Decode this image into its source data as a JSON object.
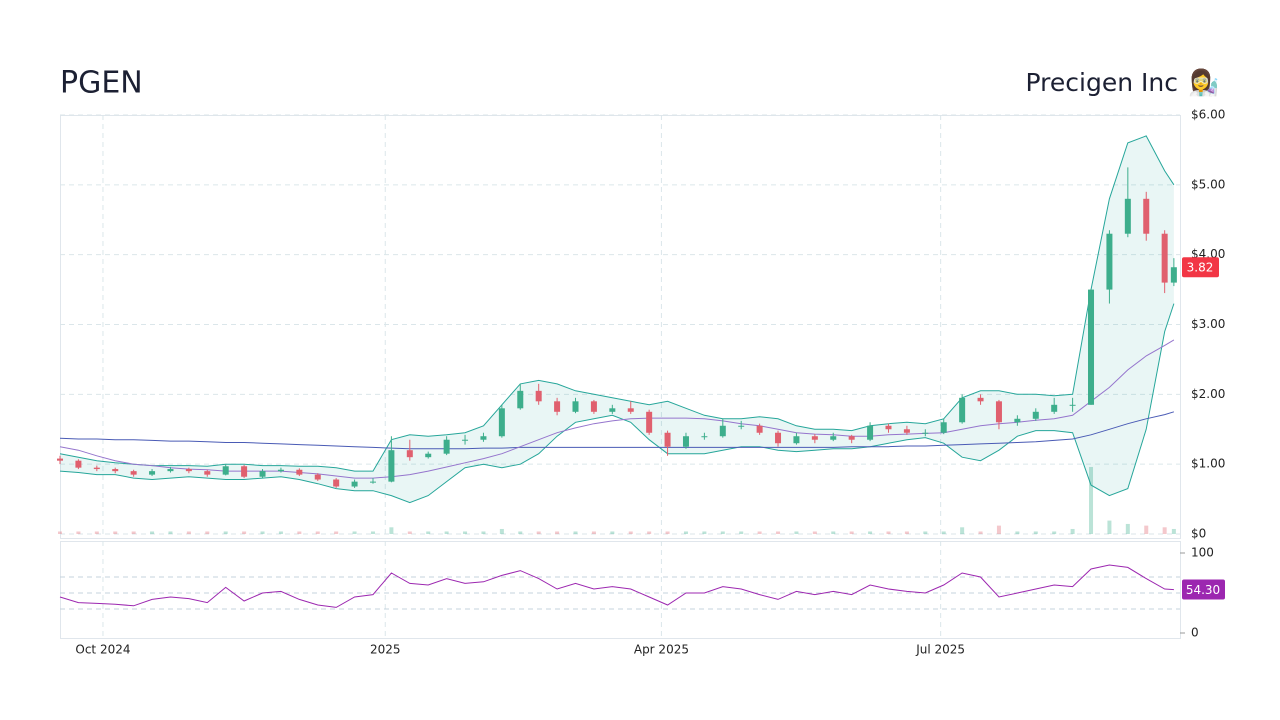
{
  "chart_data": {
    "type": "candlestick",
    "title": "PGEN",
    "subtitle": "Precigen Inc",
    "icon": "👩‍🔬",
    "x": [
      0,
      6,
      12,
      18,
      24,
      30,
      36,
      42,
      48,
      54,
      60,
      66,
      72,
      78,
      84,
      90,
      96,
      102,
      108,
      114,
      120,
      126,
      132,
      138,
      144,
      150,
      156,
      162,
      168,
      174,
      180,
      186,
      192,
      198,
      204,
      210,
      216,
      222,
      228,
      234,
      240,
      246,
      252,
      258,
      264,
      270,
      276,
      282,
      288,
      294,
      300,
      306,
      312,
      318,
      324,
      330,
      336,
      342,
      348,
      354,
      360,
      363
    ],
    "xlim": [
      0,
      365
    ],
    "xticks": [
      {
        "value": 14,
        "label": "Oct 2024"
      },
      {
        "value": 106,
        "label": "2025"
      },
      {
        "value": 196,
        "label": "Apr 2025"
      },
      {
        "value": 287,
        "label": "Jul 2025"
      }
    ],
    "ylim": [
      0,
      6
    ],
    "yticks": [
      {
        "value": 0,
        "label": "$0"
      },
      {
        "value": 1,
        "label": "$1.00"
      },
      {
        "value": 2,
        "label": "$2.00"
      },
      {
        "value": 3,
        "label": "$3.00"
      },
      {
        "value": 4,
        "label": "$4.00"
      },
      {
        "value": 5,
        "label": "$5.00"
      },
      {
        "value": 6,
        "label": "$6.00"
      }
    ],
    "grid": true,
    "up_color": "#3dae8c",
    "down_color": "#e0606e",
    "open": [
      1.08,
      1.05,
      0.95,
      0.93,
      0.9,
      0.85,
      0.9,
      0.93,
      0.9,
      0.85,
      0.97,
      0.82,
      0.9,
      0.92,
      0.85,
      0.78,
      0.68,
      0.75,
      0.75,
      1.2,
      1.1,
      1.15,
      1.35,
      1.35,
      1.4,
      1.8,
      2.05,
      1.9,
      1.75,
      1.9,
      1.75,
      1.8,
      1.75,
      1.45,
      1.25,
      1.4,
      1.4,
      1.55,
      1.55,
      1.45,
      1.3,
      1.4,
      1.35,
      1.4,
      1.35,
      1.55,
      1.5,
      1.45,
      1.45,
      1.6,
      1.95,
      1.9,
      1.6,
      1.65,
      1.75,
      1.85,
      1.85,
      3.5,
      4.3,
      4.8,
      4.3,
      3.6
    ],
    "high": [
      1.12,
      1.07,
      0.98,
      0.95,
      0.92,
      0.93,
      0.96,
      0.95,
      0.92,
      1.0,
      0.99,
      0.93,
      0.95,
      0.94,
      0.87,
      0.8,
      0.78,
      0.8,
      1.4,
      1.35,
      1.18,
      1.4,
      1.42,
      1.45,
      1.85,
      2.15,
      2.15,
      1.95,
      1.95,
      1.92,
      1.85,
      1.9,
      1.78,
      1.48,
      1.45,
      1.45,
      1.65,
      1.62,
      1.58,
      1.48,
      1.45,
      1.43,
      1.45,
      1.42,
      1.6,
      1.58,
      1.55,
      1.5,
      1.65,
      2.0,
      2.0,
      1.92,
      1.7,
      1.8,
      1.95,
      1.95,
      3.5,
      4.35,
      5.25,
      4.9,
      4.35,
      3.95
    ],
    "low": [
      1.0,
      0.93,
      0.9,
      0.87,
      0.82,
      0.83,
      0.88,
      0.87,
      0.82,
      0.84,
      0.8,
      0.8,
      0.88,
      0.83,
      0.76,
      0.66,
      0.66,
      0.72,
      0.74,
      1.05,
      1.08,
      1.13,
      1.28,
      1.32,
      1.38,
      1.78,
      1.85,
      1.7,
      1.73,
      1.72,
      1.72,
      1.72,
      1.42,
      1.12,
      1.22,
      1.35,
      1.38,
      1.5,
      1.42,
      1.25,
      1.28,
      1.3,
      1.33,
      1.3,
      1.33,
      1.45,
      1.42,
      1.4,
      1.43,
      1.58,
      1.85,
      1.5,
      1.55,
      1.62,
      1.72,
      1.75,
      1.85,
      3.3,
      4.25,
      4.2,
      3.45,
      3.55
    ],
    "close": [
      1.05,
      0.95,
      0.93,
      0.9,
      0.85,
      0.9,
      0.93,
      0.9,
      0.85,
      0.97,
      0.82,
      0.9,
      0.92,
      0.85,
      0.78,
      0.68,
      0.75,
      0.75,
      1.2,
      1.1,
      1.15,
      1.35,
      1.35,
      1.4,
      1.8,
      2.05,
      1.9,
      1.75,
      1.9,
      1.75,
      1.8,
      1.75,
      1.45,
      1.25,
      1.4,
      1.4,
      1.55,
      1.55,
      1.45,
      1.3,
      1.4,
      1.35,
      1.4,
      1.35,
      1.55,
      1.5,
      1.45,
      1.45,
      1.6,
      1.95,
      1.9,
      1.6,
      1.65,
      1.75,
      1.85,
      1.85,
      3.5,
      4.3,
      4.8,
      4.3,
      3.6,
      3.82
    ],
    "band_color": "#26a69a",
    "bollinger_upper": [
      1.15,
      1.1,
      1.05,
      1.02,
      1.0,
      0.98,
      0.98,
      0.98,
      0.97,
      1.0,
      1.0,
      0.98,
      0.98,
      0.97,
      0.97,
      0.95,
      0.9,
      0.9,
      1.35,
      1.42,
      1.4,
      1.42,
      1.45,
      1.55,
      1.85,
      2.15,
      2.2,
      2.15,
      2.05,
      2.0,
      1.95,
      1.9,
      1.85,
      1.9,
      1.8,
      1.7,
      1.65,
      1.65,
      1.68,
      1.65,
      1.55,
      1.5,
      1.5,
      1.48,
      1.55,
      1.58,
      1.6,
      1.58,
      1.65,
      1.95,
      2.05,
      2.05,
      2.0,
      2.0,
      1.98,
      2.0,
      3.5,
      4.8,
      5.6,
      5.7,
      5.2,
      5.0
    ],
    "bollinger_lower": [
      0.9,
      0.88,
      0.85,
      0.85,
      0.8,
      0.78,
      0.8,
      0.82,
      0.8,
      0.78,
      0.78,
      0.8,
      0.82,
      0.78,
      0.72,
      0.65,
      0.62,
      0.62,
      0.55,
      0.45,
      0.55,
      0.75,
      0.95,
      1.0,
      0.95,
      1.0,
      1.15,
      1.4,
      1.6,
      1.65,
      1.7,
      1.6,
      1.35,
      1.15,
      1.15,
      1.15,
      1.2,
      1.25,
      1.25,
      1.2,
      1.18,
      1.2,
      1.22,
      1.22,
      1.25,
      1.3,
      1.35,
      1.38,
      1.3,
      1.1,
      1.05,
      1.2,
      1.4,
      1.48,
      1.48,
      1.45,
      0.7,
      0.55,
      0.65,
      1.5,
      2.9,
      3.3
    ],
    "ma_fast_color": "#9575cd",
    "ma_fast": [
      1.25,
      1.2,
      1.12,
      1.05,
      1.0,
      0.98,
      0.95,
      0.93,
      0.92,
      0.9,
      0.9,
      0.9,
      0.9,
      0.88,
      0.86,
      0.83,
      0.8,
      0.8,
      0.82,
      0.85,
      0.9,
      0.96,
      1.02,
      1.08,
      1.15,
      1.25,
      1.35,
      1.45,
      1.52,
      1.58,
      1.62,
      1.65,
      1.66,
      1.66,
      1.66,
      1.65,
      1.62,
      1.58,
      1.55,
      1.5,
      1.45,
      1.43,
      1.42,
      1.4,
      1.4,
      1.42,
      1.43,
      1.44,
      1.45,
      1.5,
      1.55,
      1.58,
      1.6,
      1.63,
      1.65,
      1.7,
      1.9,
      2.1,
      2.35,
      2.55,
      2.7,
      2.78
    ],
    "ma_slow_color": "#4a5bb5",
    "ma_slow": [
      1.37,
      1.36,
      1.36,
      1.35,
      1.35,
      1.34,
      1.33,
      1.33,
      1.32,
      1.31,
      1.31,
      1.3,
      1.29,
      1.28,
      1.27,
      1.26,
      1.25,
      1.24,
      1.23,
      1.22,
      1.22,
      1.22,
      1.22,
      1.23,
      1.23,
      1.24,
      1.24,
      1.24,
      1.24,
      1.24,
      1.24,
      1.24,
      1.24,
      1.24,
      1.24,
      1.24,
      1.24,
      1.24,
      1.24,
      1.24,
      1.24,
      1.24,
      1.24,
      1.25,
      1.25,
      1.25,
      1.26,
      1.26,
      1.27,
      1.28,
      1.29,
      1.3,
      1.31,
      1.32,
      1.34,
      1.36,
      1.42,
      1.5,
      1.58,
      1.65,
      1.71,
      1.75
    ],
    "volume_lim": [
      0,
      250
    ],
    "volume": [
      1.5,
      1.5,
      1.5,
      1.5,
      1.5,
      1.5,
      1.5,
      1.5,
      1.5,
      1.5,
      1.5,
      1.5,
      1.5,
      1.5,
      1.5,
      1.5,
      1.5,
      1.5,
      4,
      1.5,
      1.5,
      1.5,
      1.5,
      1.5,
      3,
      1.5,
      1.5,
      1.5,
      1.5,
      1.5,
      1.5,
      1.5,
      1.5,
      1.5,
      1.5,
      1.5,
      1.5,
      1.5,
      1.5,
      1.5,
      1.5,
      1.5,
      1.5,
      1.5,
      1.5,
      1.5,
      1.5,
      1.5,
      1.5,
      4,
      1.5,
      5,
      1.5,
      1.5,
      1.5,
      3,
      40,
      8,
      6,
      5,
      4,
      3
    ],
    "last_color": "#f23645",
    "rsi": {
      "color": "#9c27b0",
      "ylim": [
        0,
        100
      ],
      "yticks": [
        0,
        100
      ],
      "levels": [
        30,
        50,
        70
      ],
      "values": [
        45,
        38,
        37,
        36,
        34,
        42,
        45,
        43,
        38,
        57,
        40,
        50,
        52,
        42,
        35,
        32,
        45,
        48,
        75,
        62,
        60,
        68,
        62,
        64,
        72,
        78,
        68,
        55,
        62,
        55,
        58,
        55,
        45,
        35,
        50,
        50,
        58,
        55,
        48,
        42,
        52,
        48,
        52,
        48,
        60,
        55,
        52,
        50,
        60,
        75,
        70,
        45,
        50,
        55,
        60,
        58,
        80,
        85,
        82,
        68,
        55,
        54.3
      ],
      "value_labels": [
        null,
        null,
        null,
        null,
        null,
        null,
        null,
        null,
        null,
        null,
        null,
        null,
        null,
        null,
        null,
        null,
        null,
        null,
        null,
        null,
        null,
        null,
        null,
        null,
        null,
        null,
        null,
        null,
        null,
        null,
        null,
        null,
        null,
        null,
        null,
        null,
        null,
        null,
        null,
        null,
        null,
        null,
        null,
        null,
        null,
        null,
        null,
        null,
        null,
        null,
        null,
        null,
        null,
        null,
        null,
        null,
        null,
        null,
        null,
        null,
        null,
        "54.30"
      ]
    }
  }
}
